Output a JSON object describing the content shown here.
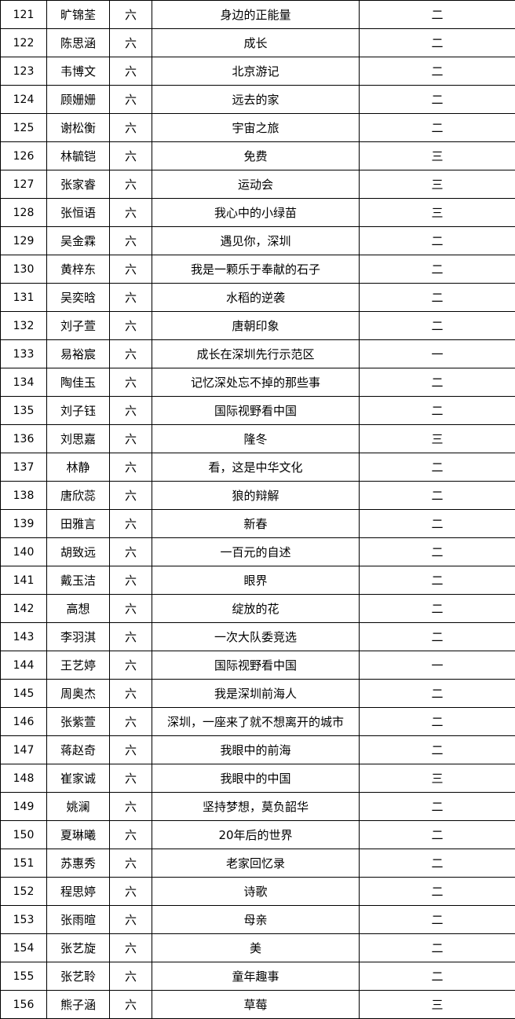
{
  "rows": [
    {
      "no": "121",
      "name": "旷锦荃",
      "grade": "六",
      "title": "身边的正能量",
      "award": "二"
    },
    {
      "no": "122",
      "name": "陈思涵",
      "grade": "六",
      "title": "成长",
      "award": "二"
    },
    {
      "no": "123",
      "name": "韦博文",
      "grade": "六",
      "title": "北京游记",
      "award": "二"
    },
    {
      "no": "124",
      "name": "顾姗姗",
      "grade": "六",
      "title": "远去的家",
      "award": "二"
    },
    {
      "no": "125",
      "name": "谢松衡",
      "grade": "六",
      "title": "宇宙之旅",
      "award": "二"
    },
    {
      "no": "126",
      "name": "林毓铠",
      "grade": "六",
      "title": "免费",
      "award": "三"
    },
    {
      "no": "127",
      "name": "张家睿",
      "grade": "六",
      "title": "运动会",
      "award": "三"
    },
    {
      "no": "128",
      "name": "张恒语",
      "grade": "六",
      "title": "我心中的小绿苗",
      "award": "三"
    },
    {
      "no": "129",
      "name": "吴金霖",
      "grade": "六",
      "title": "遇见你，深圳",
      "award": "二"
    },
    {
      "no": "130",
      "name": "黄梓东",
      "grade": "六",
      "title": "我是一颗乐于奉献的石子",
      "award": "二"
    },
    {
      "no": "131",
      "name": "吴奕晗",
      "grade": "六",
      "title": "水稻的逆袭",
      "award": "二"
    },
    {
      "no": "132",
      "name": "刘子萱",
      "grade": "六",
      "title": "唐朝印象",
      "award": "二"
    },
    {
      "no": "133",
      "name": "易裕宸",
      "grade": "六",
      "title": "成长在深圳先行示范区",
      "award": "一"
    },
    {
      "no": "134",
      "name": "陶佳玉",
      "grade": "六",
      "title": "记忆深处忘不掉的那些事",
      "award": "二"
    },
    {
      "no": "135",
      "name": "刘子钰",
      "grade": "六",
      "title": "国际视野看中国",
      "award": "二"
    },
    {
      "no": "136",
      "name": "刘思嘉",
      "grade": "六",
      "title": "隆冬",
      "award": "三"
    },
    {
      "no": "137",
      "name": "林静",
      "grade": "六",
      "title": "看，这是中华文化",
      "award": "二"
    },
    {
      "no": "138",
      "name": "唐欣蕊",
      "grade": "六",
      "title": "狼的辩解",
      "award": "二"
    },
    {
      "no": "139",
      "name": "田雅言",
      "grade": "六",
      "title": "新春",
      "award": "二"
    },
    {
      "no": "140",
      "name": "胡致远",
      "grade": "六",
      "title": "一百元的自述",
      "award": "二"
    },
    {
      "no": "141",
      "name": "戴玉洁",
      "grade": "六",
      "title": "眼界",
      "award": "二"
    },
    {
      "no": "142",
      "name": "高想",
      "grade": "六",
      "title": "绽放的花",
      "award": "二"
    },
    {
      "no": "143",
      "name": "李羽淇",
      "grade": "六",
      "title": "一次大队委竞选",
      "award": "二"
    },
    {
      "no": "144",
      "name": "王艺婷",
      "grade": "六",
      "title": "国际视野看中国",
      "award": "一"
    },
    {
      "no": "145",
      "name": "周奥杰",
      "grade": "六",
      "title": "我是深圳前海人",
      "award": "二"
    },
    {
      "no": "146",
      "name": "张紫萱",
      "grade": "六",
      "title": "深圳，一座来了就不想离开的城市",
      "award": "二"
    },
    {
      "no": "147",
      "name": "蒋赵奇",
      "grade": "六",
      "title": "我眼中的前海",
      "award": "二"
    },
    {
      "no": "148",
      "name": "崔家诚",
      "grade": "六",
      "title": "我眼中的中国",
      "award": "三"
    },
    {
      "no": "149",
      "name": "姚澜",
      "grade": "六",
      "title": "坚持梦想，莫负韶华",
      "award": "二"
    },
    {
      "no": "150",
      "name": "夏琳曦",
      "grade": "六",
      "title": "20年后的世界",
      "award": "二"
    },
    {
      "no": "151",
      "name": "苏惠秀",
      "grade": "六",
      "title": "老家回忆录",
      "award": "二"
    },
    {
      "no": "152",
      "name": "程思婷",
      "grade": "六",
      "title": "诗歌",
      "award": "二"
    },
    {
      "no": "153",
      "name": "张雨暄",
      "grade": "六",
      "title": "母亲",
      "award": "二"
    },
    {
      "no": "154",
      "name": "张艺旋",
      "grade": "六",
      "title": "美",
      "award": "二"
    },
    {
      "no": "155",
      "name": "张艺聆",
      "grade": "六",
      "title": "童年趣事",
      "award": "二"
    },
    {
      "no": "156",
      "name": "熊子涵",
      "grade": "六",
      "title": "草莓",
      "award": "三"
    }
  ]
}
